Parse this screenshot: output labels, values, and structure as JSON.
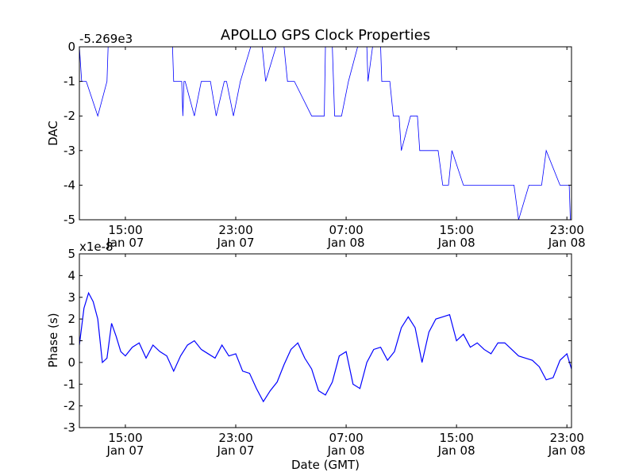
{
  "chart_data": [
    {
      "type": "line",
      "title": "APOLLO GPS Clock Properties",
      "xlabel": "",
      "ylabel": "DAC",
      "y_offset_label": "-5.269e3",
      "x_tick_labels": [
        {
          "time": "15:00",
          "date": "Jan 07"
        },
        {
          "time": "23:00",
          "date": "Jan 07"
        },
        {
          "time": "07:00",
          "date": "Jan 08"
        },
        {
          "time": "15:00",
          "date": "Jan 08"
        },
        {
          "time": "23:00",
          "date": "Jan 08"
        }
      ],
      "x_ticks": [
        "2009-01-07T15:00",
        "2009-01-07T23:00",
        "2009-01-08T07:00",
        "2009-01-08T15:00",
        "2009-01-08T23:00"
      ],
      "xlim": [
        "2009-01-07T11:40",
        "2009-01-08T23:20"
      ],
      "ylim": [
        -5,
        0
      ],
      "y_ticks": [
        0,
        -1,
        -2,
        -3,
        -4,
        -5
      ],
      "color": "#0000ff",
      "series": [
        {
          "x": [
            "2009-01-07T11:40",
            "2009-01-07T11:50",
            "2009-01-07T12:10",
            "2009-01-07T13:00",
            "2009-01-07T13:40",
            "2009-01-07T13:45",
            "2009-01-07T18:25",
            "2009-01-07T18:30",
            "2009-01-07T19:05",
            "2009-01-07T19:10",
            "2009-01-07T19:15",
            "2009-01-07T19:20",
            "2009-01-07T20:00",
            "2009-01-07T20:30",
            "2009-01-07T21:10",
            "2009-01-07T21:35",
            "2009-01-07T22:10",
            "2009-01-07T22:20",
            "2009-01-07T22:50",
            "2009-01-07T23:20",
            "2009-01-08T00:05",
            "2009-01-08T00:55",
            "2009-01-08T01:10",
            "2009-01-08T01:55",
            "2009-01-08T02:30",
            "2009-01-08T02:45",
            "2009-01-08T03:15",
            "2009-01-08T04:30",
            "2009-01-08T05:25",
            "2009-01-08T05:30",
            "2009-01-08T06:00",
            "2009-01-08T06:10",
            "2009-01-08T06:40",
            "2009-01-08T07:10",
            "2009-01-08T07:50",
            "2009-01-08T08:30",
            "2009-01-08T08:35",
            "2009-01-08T08:55",
            "2009-01-08T09:30",
            "2009-01-08T09:35",
            "2009-01-08T10:10",
            "2009-01-08T10:25",
            "2009-01-08T10:50",
            "2009-01-08T11:00",
            "2009-01-08T11:40",
            "2009-01-08T12:10",
            "2009-01-08T12:20",
            "2009-01-08T12:55",
            "2009-01-08T13:40",
            "2009-01-08T14:00",
            "2009-01-08T14:25",
            "2009-01-08T14:40",
            "2009-01-08T15:30",
            "2009-01-08T15:55",
            "2009-01-08T17:30",
            "2009-01-08T18:00",
            "2009-01-08T19:10",
            "2009-01-08T19:30",
            "2009-01-08T20:15",
            "2009-01-08T21:10",
            "2009-01-08T21:30",
            "2009-01-08T22:30",
            "2009-01-08T22:55",
            "2009-01-08T23:10",
            "2009-01-08T23:15"
          ],
          "y": [
            0,
            -1,
            -1,
            -2,
            -1,
            0,
            0,
            -1,
            -1,
            -2,
            -1,
            -1,
            -2,
            -1,
            -1,
            -2,
            -1,
            -1,
            -2,
            -1,
            0,
            0,
            -1,
            0,
            0,
            -1,
            -1,
            -2,
            -2,
            0,
            0,
            -2,
            -2,
            -1,
            0,
            0,
            -1,
            0,
            0,
            -1,
            -1,
            -2,
            -2,
            -3,
            -2,
            -2,
            -3,
            -3,
            -3,
            -4,
            -4,
            -3,
            -4,
            -4,
            -4,
            -4,
            -4,
            -5,
            -4,
            -4,
            -3,
            -4,
            -4,
            -4,
            -5
          ]
        }
      ]
    },
    {
      "type": "line",
      "title": "",
      "xlabel": "Date (GMT)",
      "ylabel": "Phase (s)",
      "y_offset_label": "x1e-8",
      "x_tick_labels": [
        {
          "time": "15:00",
          "date": "Jan 07"
        },
        {
          "time": "23:00",
          "date": "Jan 07"
        },
        {
          "time": "07:00",
          "date": "Jan 08"
        },
        {
          "time": "15:00",
          "date": "Jan 08"
        },
        {
          "time": "23:00",
          "date": "Jan 08"
        }
      ],
      "x_ticks": [
        "2009-01-07T15:00",
        "2009-01-07T23:00",
        "2009-01-08T07:00",
        "2009-01-08T15:00",
        "2009-01-08T23:00"
      ],
      "xlim": [
        "2009-01-07T11:40",
        "2009-01-08T23:20"
      ],
      "ylim": [
        -3,
        5
      ],
      "y_ticks": [
        5,
        4,
        3,
        2,
        1,
        0,
        -1,
        -2,
        -3
      ],
      "color": "#0000ff",
      "series": [
        {
          "x": [
            "2009-01-07T11:40",
            "2009-01-07T12:00",
            "2009-01-07T12:20",
            "2009-01-07T12:40",
            "2009-01-07T13:00",
            "2009-01-07T13:20",
            "2009-01-07T13:40",
            "2009-01-07T14:00",
            "2009-01-07T14:20",
            "2009-01-07T14:40",
            "2009-01-07T15:00",
            "2009-01-07T15:30",
            "2009-01-07T16:00",
            "2009-01-07T16:30",
            "2009-01-07T17:00",
            "2009-01-07T17:30",
            "2009-01-07T18:00",
            "2009-01-07T18:30",
            "2009-01-07T19:00",
            "2009-01-07T19:30",
            "2009-01-07T20:00",
            "2009-01-07T20:30",
            "2009-01-07T21:00",
            "2009-01-07T21:30",
            "2009-01-07T22:00",
            "2009-01-07T22:30",
            "2009-01-07T23:00",
            "2009-01-07T23:30",
            "2009-01-08T00:00",
            "2009-01-08T00:30",
            "2009-01-08T01:00",
            "2009-01-08T01:30",
            "2009-01-08T02:00",
            "2009-01-08T02:30",
            "2009-01-08T03:00",
            "2009-01-08T03:30",
            "2009-01-08T04:00",
            "2009-01-08T04:30",
            "2009-01-08T05:00",
            "2009-01-08T05:30",
            "2009-01-08T06:00",
            "2009-01-08T06:30",
            "2009-01-08T07:00",
            "2009-01-08T07:30",
            "2009-01-08T08:00",
            "2009-01-08T08:30",
            "2009-01-08T09:00",
            "2009-01-08T09:30",
            "2009-01-08T10:00",
            "2009-01-08T10:30",
            "2009-01-08T11:00",
            "2009-01-08T11:30",
            "2009-01-08T12:00",
            "2009-01-08T12:30",
            "2009-01-08T13:00",
            "2009-01-08T13:30",
            "2009-01-08T14:00",
            "2009-01-08T14:30",
            "2009-01-08T15:00",
            "2009-01-08T15:30",
            "2009-01-08T16:00",
            "2009-01-08T16:30",
            "2009-01-08T17:00",
            "2009-01-08T17:30",
            "2009-01-08T18:00",
            "2009-01-08T18:30",
            "2009-01-08T19:00",
            "2009-01-08T19:30",
            "2009-01-08T20:00",
            "2009-01-08T20:30",
            "2009-01-08T21:00",
            "2009-01-08T21:30",
            "2009-01-08T22:00",
            "2009-01-08T22:30",
            "2009-01-08T23:00",
            "2009-01-08T23:20"
          ],
          "y": [
            0.8,
            2.5,
            3.2,
            2.8,
            2.0,
            0.0,
            0.2,
            1.8,
            1.2,
            0.5,
            0.3,
            0.7,
            0.9,
            0.2,
            0.8,
            0.5,
            0.3,
            -0.4,
            0.3,
            0.8,
            1.0,
            0.6,
            0.4,
            0.2,
            0.8,
            0.3,
            0.4,
            -0.4,
            -0.5,
            -1.2,
            -1.8,
            -1.3,
            -0.9,
            -0.1,
            0.6,
            0.9,
            0.2,
            -0.3,
            -1.3,
            -1.5,
            -0.9,
            0.3,
            0.5,
            -1.0,
            -1.2,
            0.0,
            0.6,
            0.7,
            0.1,
            0.5,
            1.6,
            2.1,
            1.6,
            0.0,
            1.4,
            2.0,
            2.1,
            2.2,
            1.0,
            1.3,
            0.7,
            0.9,
            0.6,
            0.4,
            0.9,
            0.9,
            0.6,
            0.3,
            0.2,
            0.1,
            -0.2,
            -0.8,
            -0.7,
            0.1,
            0.4,
            -0.3
          ]
        }
      ]
    }
  ]
}
